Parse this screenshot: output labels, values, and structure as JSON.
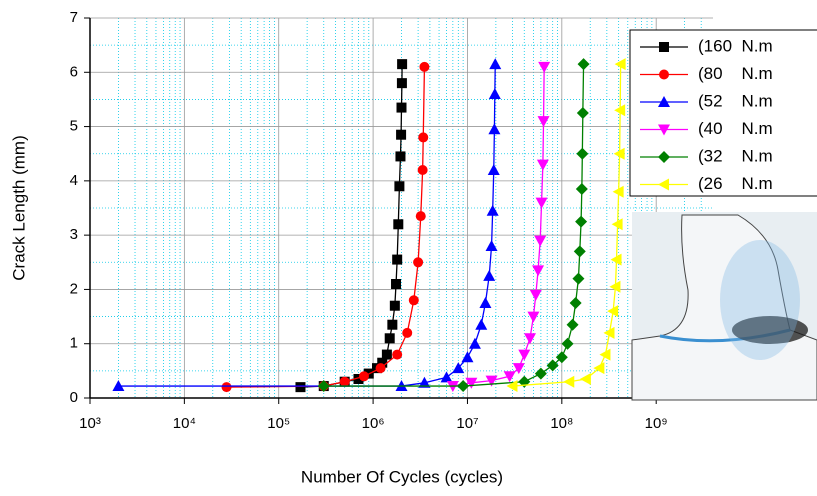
{
  "chart_data": {
    "type": "line",
    "x_label": "Number Of Cycles (cycles)",
    "y_label": "Crack Length (mm)",
    "log_x": true,
    "grid": true,
    "legend_position": "upper-right",
    "xlim": [
      1000,
      4000000000
    ],
    "ylim": [
      0,
      7
    ],
    "xticks": [
      {
        "value": 1000,
        "label": "10³"
      },
      {
        "value": 10000,
        "label": "10⁴"
      },
      {
        "value": 100000,
        "label": "10⁵"
      },
      {
        "value": 1000000,
        "label": "10⁶"
      },
      {
        "value": 10000000,
        "label": "10⁷"
      },
      {
        "value": 100000000,
        "label": "10⁸"
      },
      {
        "value": 1000000000,
        "label": "10⁹"
      }
    ],
    "yticks": [
      0,
      1,
      2,
      3,
      4,
      5,
      6,
      7
    ],
    "series": [
      {
        "name": "(160  N.m",
        "color": "#000000",
        "marker": "square",
        "x": [
          170000,
          300000,
          500000,
          700000,
          900000,
          1100000,
          1250000,
          1400000,
          1500000,
          1600000,
          1700000,
          1750000,
          1800000,
          1850000,
          1900000,
          1950000,
          1980000,
          2000000,
          2020000,
          2030000
        ],
        "values": [
          0.2,
          0.22,
          0.3,
          0.35,
          0.45,
          0.55,
          0.65,
          0.8,
          1.1,
          1.35,
          1.7,
          2.1,
          2.55,
          3.2,
          3.9,
          4.45,
          4.85,
          5.35,
          5.8,
          6.15
        ]
      },
      {
        "name": "(80    N.m",
        "color": "#ff0000",
        "marker": "circle",
        "x": [
          28000,
          300000,
          500000,
          800000,
          1200000,
          1800000,
          2300000,
          2700000,
          3000000,
          3200000,
          3350000,
          3400000,
          3500000
        ],
        "values": [
          0.2,
          0.22,
          0.3,
          0.4,
          0.55,
          0.8,
          1.2,
          1.8,
          2.5,
          3.35,
          4.2,
          4.8,
          6.1
        ]
      },
      {
        "name": "(52    N.m",
        "color": "#0000ff",
        "marker": "triangle-up",
        "x": [
          2000,
          2000000,
          3500000,
          6000000,
          8000000,
          10000000,
          12000000,
          14000000,
          15500000,
          17000000,
          18000000,
          18500000,
          19000000,
          19300000,
          19500000,
          19700000
        ],
        "values": [
          0.22,
          0.22,
          0.28,
          0.38,
          0.55,
          0.75,
          1.0,
          1.35,
          1.75,
          2.25,
          2.8,
          3.45,
          4.2,
          4.95,
          5.6,
          6.15
        ]
      },
      {
        "name": "(40    N.m",
        "color": "#ff00ff",
        "marker": "triangle-down",
        "x": [
          7000000,
          11000000,
          18000000,
          28000000,
          35000000,
          40000000,
          46000000,
          50000000,
          53000000,
          56000000,
          59000000,
          61000000,
          63000000,
          64000000,
          65000000
        ],
        "values": [
          0.22,
          0.28,
          0.32,
          0.4,
          0.55,
          0.8,
          1.1,
          1.5,
          1.9,
          2.35,
          2.9,
          3.6,
          4.3,
          5.1,
          6.1
        ]
      },
      {
        "name": "(32    N.m",
        "color": "#008000",
        "marker": "diamond",
        "x": [
          300000,
          9000000,
          40000000,
          60000000,
          80000000,
          100000000,
          115000000,
          130000000,
          140000000,
          150000000,
          155000000,
          160000000,
          163000000,
          165000000,
          167000000,
          170000000
        ],
        "values": [
          0.22,
          0.22,
          0.3,
          0.45,
          0.6,
          0.75,
          1.0,
          1.35,
          1.75,
          2.2,
          2.7,
          3.25,
          3.85,
          4.5,
          5.25,
          6.15
        ]
      },
      {
        "name": "(26    N.m",
        "color": "#ffff00",
        "marker": "triangle-left",
        "x": [
          30000000,
          120000000,
          180000000,
          250000000,
          290000000,
          320000000,
          350000000,
          370000000,
          380000000,
          390000000,
          400000000,
          410000000,
          415000000,
          420000000
        ],
        "values": [
          0.22,
          0.3,
          0.35,
          0.55,
          0.8,
          1.2,
          1.6,
          2.05,
          2.55,
          3.2,
          3.8,
          4.5,
          5.3,
          6.15
        ]
      }
    ]
  }
}
